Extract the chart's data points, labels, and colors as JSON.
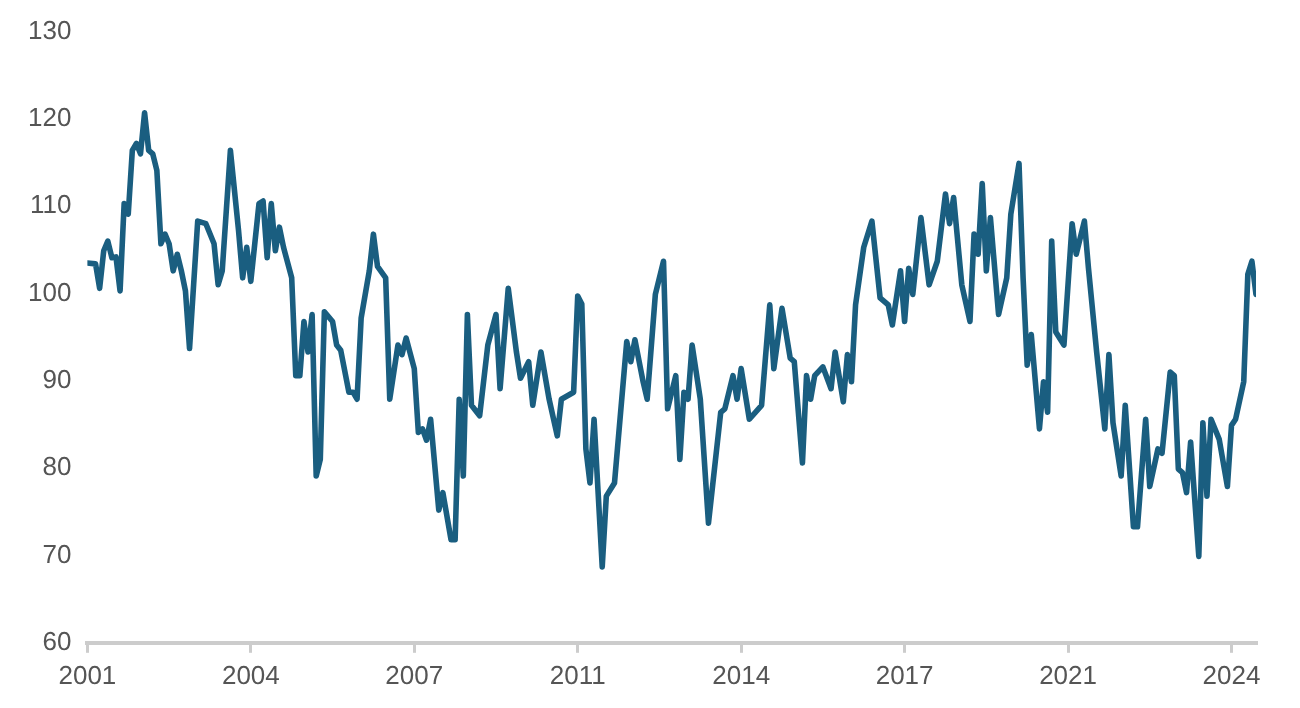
{
  "chart_data": {
    "type": "line",
    "color": "#1a5e80",
    "marker": "none",
    "line_style": "solid",
    "grid": false,
    "xlim": [
      "2001-01",
      "2024-11"
    ],
    "xticks": [
      {
        "value": "2001-01",
        "label": "2001"
      },
      {
        "value": "2004-05",
        "label": "2004"
      },
      {
        "value": "2007-09",
        "label": "2007"
      },
      {
        "value": "2011-01",
        "label": "2011"
      },
      {
        "value": "2014-05",
        "label": "2014"
      },
      {
        "value": "2017-09",
        "label": "2017"
      },
      {
        "value": "2021-01",
        "label": "2021"
      },
      {
        "value": "2024-05",
        "label": "2024"
      }
    ],
    "ylim": [
      60,
      130
    ],
    "yticks": [
      60,
      70,
      80,
      90,
      100,
      110,
      120,
      130
    ],
    "x": [
      "2001-01",
      "2001-03",
      "2001-04",
      "2001-05",
      "2001-06",
      "2001-07",
      "2001-08",
      "2001-09",
      "2001-10",
      "2001-11",
      "2001-12",
      "2002-01",
      "2002-02",
      "2002-03",
      "2002-04",
      "2002-05",
      "2002-06",
      "2002-07",
      "2002-08",
      "2002-09",
      "2002-10",
      "2002-11",
      "2002-12",
      "2003-01",
      "2003-02",
      "2003-04",
      "2003-06",
      "2003-08",
      "2003-09",
      "2003-10",
      "2003-12",
      "2004-02",
      "2004-03",
      "2004-04",
      "2004-05",
      "2004-07",
      "2004-08",
      "2004-09",
      "2004-10",
      "2004-11",
      "2004-12",
      "2005-01",
      "2005-03",
      "2005-04",
      "2005-05",
      "2005-06",
      "2005-07",
      "2005-08",
      "2005-09",
      "2005-10",
      "2005-11",
      "2006-01",
      "2006-02",
      "2006-03",
      "2006-05",
      "2006-06",
      "2006-07",
      "2006-08",
      "2006-10",
      "2006-11",
      "2006-12",
      "2007-02",
      "2007-03",
      "2007-05",
      "2007-06",
      "2007-07",
      "2007-09",
      "2007-10",
      "2007-11",
      "2007-12",
      "2008-01",
      "2008-03",
      "2008-04",
      "2008-06",
      "2008-07",
      "2008-08",
      "2008-09",
      "2008-10",
      "2008-11",
      "2009-01",
      "2009-03",
      "2009-05",
      "2009-06",
      "2009-08",
      "2009-10",
      "2009-11",
      "2010-01",
      "2010-02",
      "2010-04",
      "2010-06",
      "2010-08",
      "2010-09",
      "2010-12",
      "2011-01",
      "2011-02",
      "2011-03",
      "2011-04",
      "2011-05",
      "2011-07",
      "2011-08",
      "2011-10",
      "2012-01",
      "2012-02",
      "2012-03",
      "2012-05",
      "2012-06",
      "2012-08",
      "2012-10",
      "2012-11",
      "2013-01",
      "2013-02",
      "2013-03",
      "2013-04",
      "2013-05",
      "2013-07",
      "2013-09",
      "2013-12",
      "2014-01",
      "2014-03",
      "2014-04",
      "2014-05",
      "2014-07",
      "2014-10",
      "2014-12",
      "2015-01",
      "2015-03",
      "2015-05",
      "2015-06",
      "2015-08",
      "2015-09",
      "2015-10",
      "2015-11",
      "2016-01",
      "2016-03",
      "2016-04",
      "2016-06",
      "2016-07",
      "2016-08",
      "2016-09",
      "2016-11",
      "2017-01",
      "2017-03",
      "2017-05",
      "2017-06",
      "2017-08",
      "2017-09",
      "2017-10",
      "2017-11",
      "2018-01",
      "2018-03",
      "2018-05",
      "2018-07",
      "2018-08",
      "2018-09",
      "2018-11",
      "2019-01",
      "2019-02",
      "2019-03",
      "2019-04",
      "2019-05",
      "2019-06",
      "2019-08",
      "2019-10",
      "2019-11",
      "2020-01",
      "2020-02",
      "2020-03",
      "2020-04",
      "2020-06",
      "2020-07",
      "2020-08",
      "2020-09",
      "2020-10",
      "2020-12",
      "2021-02",
      "2021-03",
      "2021-05",
      "2021-06",
      "2021-08",
      "2021-10",
      "2021-11",
      "2021-12",
      "2022-02",
      "2022-03",
      "2022-05",
      "2022-06",
      "2022-08",
      "2022-09",
      "2022-11",
      "2022-12",
      "2023-02",
      "2023-03",
      "2023-04",
      "2023-05",
      "2023-06",
      "2023-07",
      "2023-09",
      "2023-10",
      "2023-11",
      "2023-12",
      "2024-02",
      "2024-04",
      "2024-05",
      "2024-06",
      "2024-08",
      "2024-09",
      "2024-10",
      "2024-11"
    ],
    "values": [
      103.5,
      103.4,
      100.6,
      104.9,
      106,
      104.1,
      104.2,
      100.3,
      110.3,
      109.1,
      116.4,
      117.2,
      116,
      120.7,
      116.4,
      116,
      114.1,
      105.7,
      106.8,
      105.7,
      102.6,
      104.5,
      102.6,
      100.3,
      93.7,
      108.3,
      108,
      105.7,
      101,
      102.6,
      116.4,
      107.2,
      101.8,
      105.3,
      101.4,
      110.3,
      110.6,
      104.1,
      110.3,
      104.9,
      107.6,
      105.3,
      101.8,
      90.6,
      90.6,
      96.8,
      93.3,
      97.6,
      79.1,
      81,
      97.9,
      96.8,
      94.1,
      93.5,
      88.7,
      88.7,
      87.9,
      97.2,
      102.6,
      106.8,
      103.1,
      101.8,
      87.9,
      94.1,
      93,
      94.9,
      91.4,
      84.1,
      84.5,
      83.2,
      85.6,
      75.2,
      77.2,
      71.8,
      71.8,
      87.9,
      79.1,
      97.6,
      87.2,
      86,
      94.1,
      97.6,
      89.1,
      100.6,
      93.3,
      90.3,
      92.2,
      87.2,
      93.3,
      87.9,
      83.7,
      87.9,
      88.7,
      99.7,
      98.8,
      82.2,
      78.3,
      85.6,
      68.7,
      76.8,
      78.3,
      94.5,
      92.2,
      94.7,
      89.9,
      87.9,
      99.9,
      103.7,
      86.8,
      90.6,
      81,
      88.7,
      87.9,
      94.1,
      87.9,
      73.7,
      86.4,
      86.8,
      90.6,
      87.9,
      91.4,
      85.6,
      87.2,
      98.7,
      91.4,
      98.3,
      92.6,
      92.2,
      80.6,
      90.6,
      87.9,
      90.6,
      91.6,
      89.1,
      93.3,
      87.6,
      93,
      89.9,
      98.7,
      105.3,
      108.3,
      99.5,
      98.7,
      96.4,
      102.6,
      96.8,
      102.9,
      99.9,
      108.7,
      101,
      103.7,
      111.4,
      108,
      111,
      101,
      96.8,
      106.8,
      104.5,
      112.6,
      102.6,
      108.7,
      97.6,
      101.8,
      109.1,
      114.9,
      101.8,
      91.8,
      95.3,
      84.5,
      89.9,
      86.4,
      106,
      95.6,
      94.1,
      108,
      104.5,
      108.3,
      102.9,
      93.3,
      84.5,
      93,
      85.2,
      79.1,
      87.2,
      73.3,
      73.3,
      85.6,
      77.9,
      82.2,
      81.7,
      91,
      90.6,
      79.9,
      79.5,
      77.2,
      83,
      69.9,
      85.2,
      76.8,
      85.6,
      83.3,
      77.9,
      84.9,
      85.6,
      89.9,
      102.2,
      103.7,
      99.9
    ]
  }
}
